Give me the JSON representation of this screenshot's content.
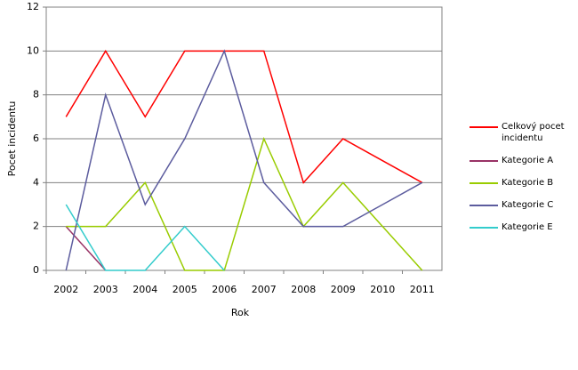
{
  "chart_data": {
    "type": "line",
    "x_label": "Rok",
    "y_label": "Pocet incidentu",
    "categories": [
      "2002",
      "2003",
      "2004",
      "2005",
      "2006",
      "2007",
      "2008",
      "2009",
      "2010",
      "2011"
    ],
    "series": [
      {
        "name": "Celkový pocet incidentu",
        "color": "#ff0000",
        "values": [
          7,
          10,
          7,
          10,
          10,
          10,
          4,
          6,
          5,
          4
        ]
      },
      {
        "name": "Kategorie A",
        "color": "#993366",
        "values": [
          2,
          0,
          null,
          null,
          null,
          null,
          null,
          null,
          null,
          null
        ]
      },
      {
        "name": "Kategorie B",
        "color": "#99cc00",
        "values": [
          2,
          2,
          4,
          0,
          0,
          6,
          2,
          4,
          2,
          0
        ]
      },
      {
        "name": "Kategorie C",
        "color": "#5c5c9e",
        "values": [
          0,
          8,
          3,
          6,
          10,
          4,
          2,
          2,
          3,
          4
        ]
      },
      {
        "name": "Kategorie E",
        "color": "#33cccc",
        "values": [
          3,
          0,
          0,
          2,
          0,
          null,
          null,
          null,
          null,
          null
        ]
      }
    ],
    "ylim": [
      0,
      12
    ],
    "yticks": [
      0,
      2,
      4,
      6,
      8,
      10,
      12
    ],
    "grid": true
  }
}
